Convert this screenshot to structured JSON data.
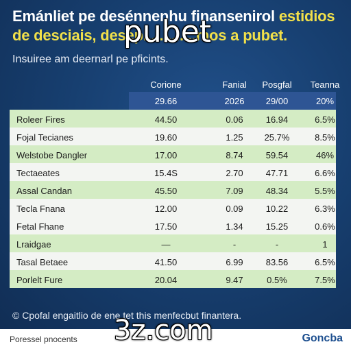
{
  "title": {
    "line1_white": "Emánliet pe desénnenhu finansenirol ",
    "line1_yellow": "estidios",
    "line2": "de desciais, desep.............mos a pubet."
  },
  "overlay_brand": "pubet",
  "subtitle": "Insuiree am deernarl pe pficints.",
  "table": {
    "headers": [
      "Corione",
      "Fanial",
      "Posgfal",
      "Teanna"
    ],
    "periods": [
      "29.66",
      "2026",
      "29/00",
      "20%"
    ],
    "rows": [
      {
        "label": "Roleer Fires",
        "values": [
          "44.50",
          "0.06",
          "16.94",
          "6.5%"
        ]
      },
      {
        "label": "Fojal Tecianes",
        "values": [
          "19.60",
          "1.25",
          "25.7%",
          "8.5%"
        ]
      },
      {
        "label": "Welstobe Dangler",
        "values": [
          "17.00",
          "8.74",
          "59.54",
          "46%"
        ]
      },
      {
        "label": "Tectaeates",
        "values": [
          "15.4S",
          "2.70",
          "47.71",
          "6.6%"
        ]
      },
      {
        "label": "Assal Candan",
        "values": [
          "45.50",
          "7.09",
          "48.34",
          "5.5%"
        ]
      },
      {
        "label": "Tecla Fnana",
        "values": [
          "12.00",
          "0.09",
          "10.22",
          "6.3%"
        ]
      },
      {
        "label": "Fetal Fhane",
        "values": [
          "17.50",
          "1.34",
          "15.25",
          "0.6%"
        ]
      },
      {
        "label": "Lraidgae",
        "values": [
          "—",
          "-",
          "-",
          "1"
        ]
      },
      {
        "label": "Tasal Betaee",
        "values": [
          "41.50",
          "6.99",
          "83.56",
          "6.5%"
        ]
      },
      {
        "label": "Porlelt Fure",
        "values": [
          "20.04",
          "9.47",
          "0.5%",
          "7.5%"
        ]
      }
    ]
  },
  "footnote": "© Cpofal engaitlio de ene tet this menfecbut finantera.",
  "footer": {
    "left": "Poressel pnocents",
    "right": "Goncba"
  },
  "overlay_domain": "3z.com",
  "colors": {
    "background": "#173f70",
    "title_accent": "#f1e04a",
    "period_band": "#2e5594",
    "row_green": "#d4ecc4",
    "row_white": "#f3f5f2",
    "footer_brand": "#1d4f8f"
  }
}
